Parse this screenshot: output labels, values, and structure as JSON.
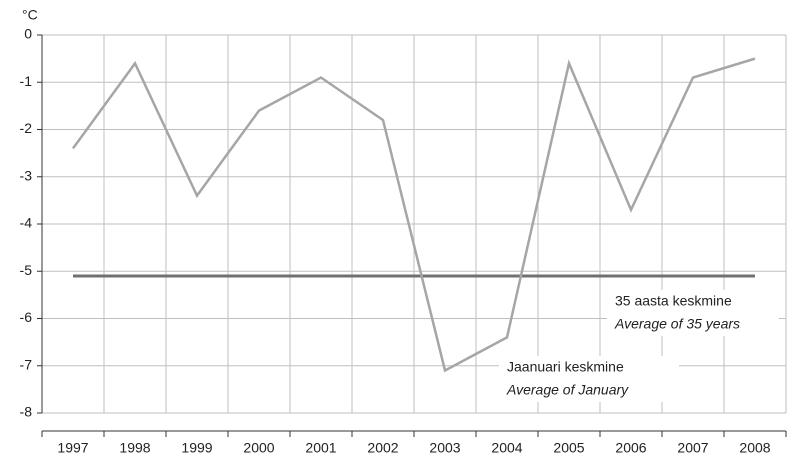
{
  "chart_data": {
    "type": "line",
    "y_label": "°C",
    "categories": [
      "1997",
      "1998",
      "1999",
      "2000",
      "2001",
      "2002",
      "2003",
      "2004",
      "2005",
      "2006",
      "2007",
      "2008"
    ],
    "series": [
      {
        "name": "Jaanuari keskmine",
        "name_en": "Average of January",
        "color": "#a6a6a6",
        "values": [
          -2.4,
          -0.6,
          -3.4,
          -1.6,
          -0.9,
          -1.8,
          -7.1,
          -6.4,
          -0.6,
          -3.7,
          -0.9,
          -0.5
        ]
      },
      {
        "name": "35 aasta keskmine",
        "name_en": "Average of 35 years",
        "color": "#707070",
        "values": [
          -5.1,
          -5.1,
          -5.1,
          -5.1,
          -5.1,
          -5.1,
          -5.1,
          -5.1,
          -5.1,
          -5.1,
          -5.1,
          -5.1
        ]
      }
    ],
    "ylim": [
      -8,
      0
    ],
    "yticks": [
      -8,
      -7,
      -6,
      -5,
      -4,
      -3,
      -2,
      -1,
      0
    ],
    "grid": true
  }
}
